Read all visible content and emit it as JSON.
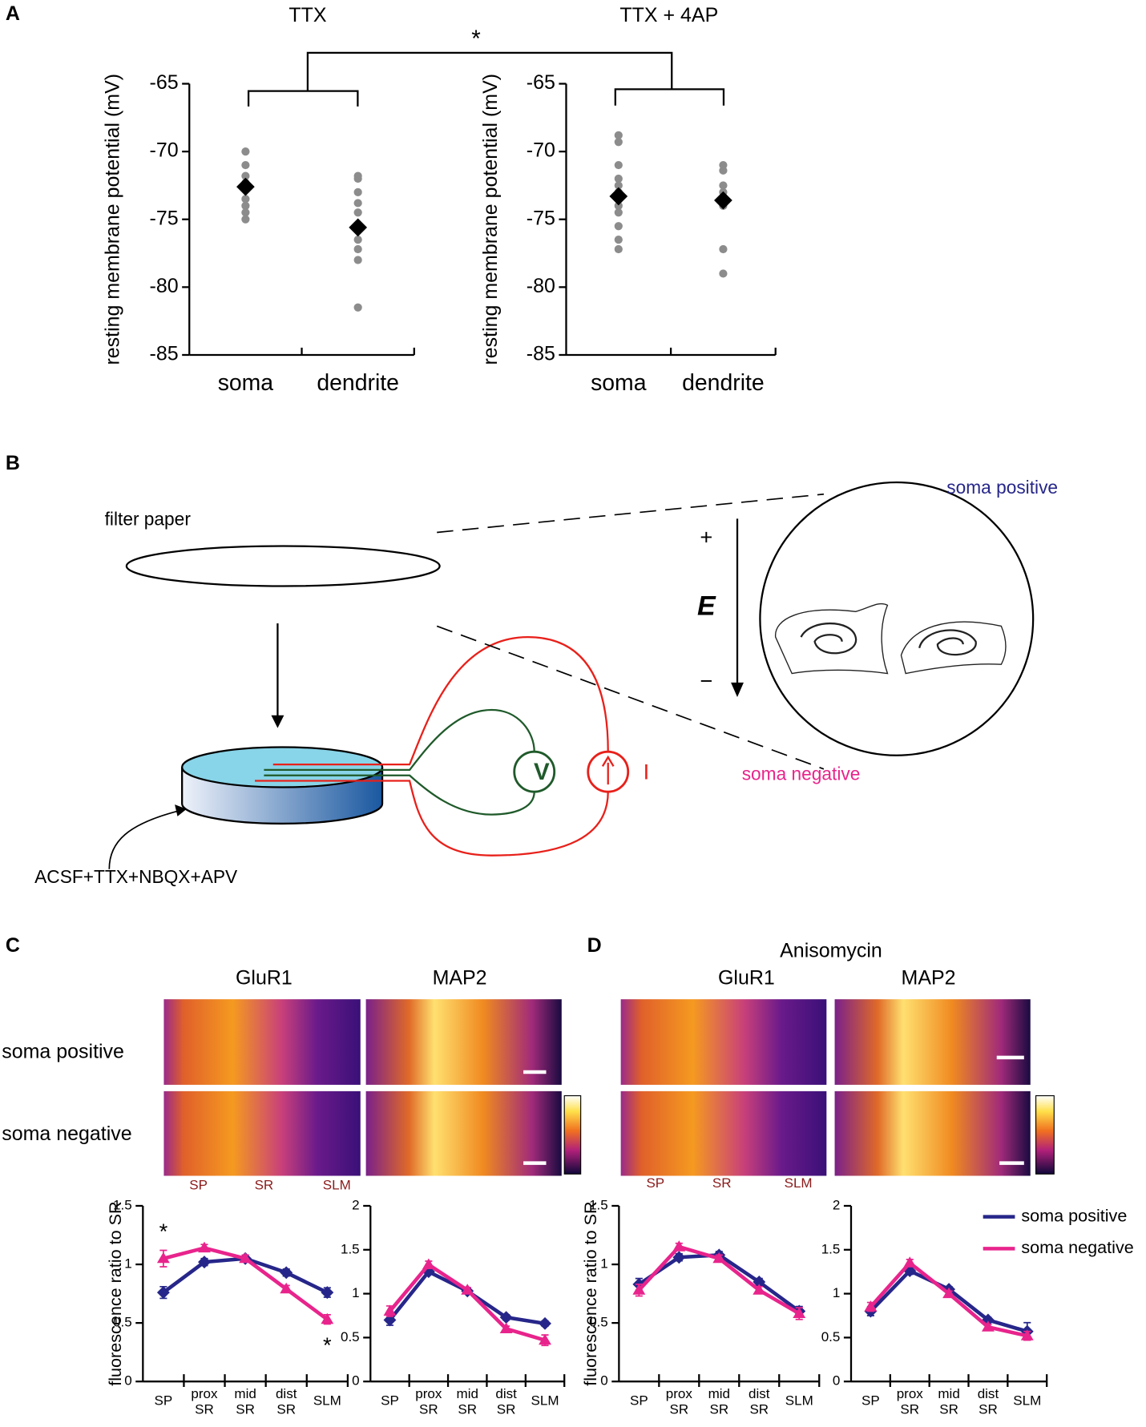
{
  "panels": [
    "A",
    "B",
    "C",
    "D"
  ],
  "chart_data": [
    {
      "type": "strip",
      "title": "TTX",
      "y_label": "resting membrane potential (mV)",
      "categories": [
        "soma",
        "dendrite"
      ],
      "points": [
        [
          -70,
          -71,
          -71.8,
          -72.3,
          -72.8,
          -73.5,
          -74,
          -74.5,
          -75
        ],
        [
          -71.8,
          -72,
          -73,
          -73.8,
          -74.5,
          -75.5,
          -76.5,
          -77.2,
          -78,
          -81.5
        ]
      ],
      "means": [
        -72.6,
        -75.6
      ],
      "point_color": "#8c8c8c",
      "mean_color": "#000000",
      "ylim": [
        -85,
        -65
      ],
      "yticks": [
        -85,
        -80,
        -75,
        -70,
        -65
      ]
    },
    {
      "type": "strip",
      "title": "TTX + 4AP",
      "y_label": "resting membrane potential (mV)",
      "categories": [
        "soma",
        "dendrite"
      ],
      "points": [
        [
          -68.8,
          -69.3,
          -71,
          -72,
          -72.5,
          -73,
          -73.5,
          -74,
          -74.5,
          -75.5,
          -76.5,
          -77.2
        ],
        [
          -71,
          -71.4,
          -72.5,
          -73,
          -74,
          -77.2,
          -79
        ]
      ],
      "means": [
        -73.3,
        -73.6
      ],
      "point_color": "#8c8c8c",
      "mean_color": "#000000",
      "ylim": [
        -85,
        -65
      ],
      "yticks": [
        -85,
        -80,
        -75,
        -70,
        -65
      ]
    },
    {
      "type": "line",
      "y_label": "fluorescence ratio to SR",
      "categories": [
        "SP",
        "prox SR",
        "mid SR",
        "dist SR",
        "SLM"
      ],
      "series": [
        {
          "color": "#26268a",
          "marker": "diamond",
          "values": [
            0.76,
            1.02,
            1.05,
            0.93,
            0.76
          ],
          "errors": [
            0.05,
            0.03,
            0.03,
            0.03,
            0.04
          ]
        },
        {
          "color": "#e8248c",
          "marker": "triangle",
          "values": [
            1.05,
            1.14,
            1.05,
            0.79,
            0.53
          ],
          "errors": [
            0.07,
            0.03,
            0.03,
            0.03,
            0.04
          ]
        }
      ],
      "annotations": [
        {
          "text": "*",
          "category": 0,
          "position": "above"
        },
        {
          "text": "*",
          "category": 4,
          "position": "below"
        }
      ],
      "ylim": [
        0,
        1.5
      ],
      "yticks": [
        0,
        0.5,
        1,
        1.5
      ]
    },
    {
      "type": "line",
      "categories": [
        "SP",
        "prox SR",
        "mid SR",
        "dist SR",
        "SLM"
      ],
      "series": [
        {
          "color": "#26268a",
          "marker": "diamond",
          "values": [
            0.7,
            1.25,
            1.03,
            0.73,
            0.66
          ],
          "errors": [
            0.06,
            0.03,
            0.03,
            0.03,
            0.03
          ]
        },
        {
          "color": "#e8248c",
          "marker": "triangle",
          "values": [
            0.8,
            1.33,
            1.04,
            0.6,
            0.47
          ],
          "errors": [
            0.06,
            0.04,
            0.03,
            0.03,
            0.06
          ]
        }
      ],
      "ylim": [
        0,
        2
      ],
      "yticks": [
        0,
        0.5,
        1,
        1.5,
        2
      ]
    },
    {
      "type": "line",
      "y_label": "fluorescence ratio to SR",
      "categories": [
        "SP",
        "prox SR",
        "mid SR",
        "dist SR",
        "SLM"
      ],
      "series": [
        {
          "color": "#26268a",
          "marker": "diamond",
          "values": [
            0.83,
            1.06,
            1.08,
            0.85,
            0.6
          ],
          "errors": [
            0.05,
            0.03,
            0.03,
            0.03,
            0.04
          ]
        },
        {
          "color": "#e8248c",
          "marker": "triangle",
          "values": [
            0.78,
            1.15,
            1.05,
            0.78,
            0.58
          ],
          "errors": [
            0.05,
            0.03,
            0.03,
            0.03,
            0.05
          ]
        }
      ],
      "ylim": [
        0,
        1.5
      ],
      "yticks": [
        0,
        0.5,
        1,
        1.5
      ]
    },
    {
      "type": "line",
      "categories": [
        "SP",
        "prox SR",
        "mid SR",
        "dist SR",
        "SLM"
      ],
      "series": [
        {
          "name": "soma positive",
          "color": "#26268a",
          "marker": "diamond",
          "values": [
            0.8,
            1.26,
            1.05,
            0.7,
            0.57
          ],
          "errors": [
            0.05,
            0.04,
            0.03,
            0.03,
            0.1
          ]
        },
        {
          "name": "soma negative",
          "color": "#e8248c",
          "marker": "triangle",
          "values": [
            0.85,
            1.35,
            1.0,
            0.62,
            0.52
          ],
          "errors": [
            0.05,
            0.04,
            0.03,
            0.03,
            0.05
          ]
        }
      ],
      "legend": "right",
      "ylim": [
        0,
        2
      ],
      "yticks": [
        0,
        0.5,
        1,
        1.5,
        2
      ]
    }
  ],
  "significance": "*",
  "diagram": {
    "filter_paper": "filter paper",
    "soma_positive": "soma positive",
    "soma_negative": "soma negative",
    "plus": "+",
    "field": "E",
    "minus": "−",
    "voltmeter": "V",
    "current": "I",
    "solution": "ACSF+TTX+NBQX+APV"
  },
  "images": {
    "treatment": "Anisomycin",
    "stains": [
      "GluR1",
      "MAP2"
    ],
    "rows": [
      "soma positive",
      "soma negative"
    ],
    "layers": [
      "SP",
      "SR",
      "SLM"
    ]
  }
}
